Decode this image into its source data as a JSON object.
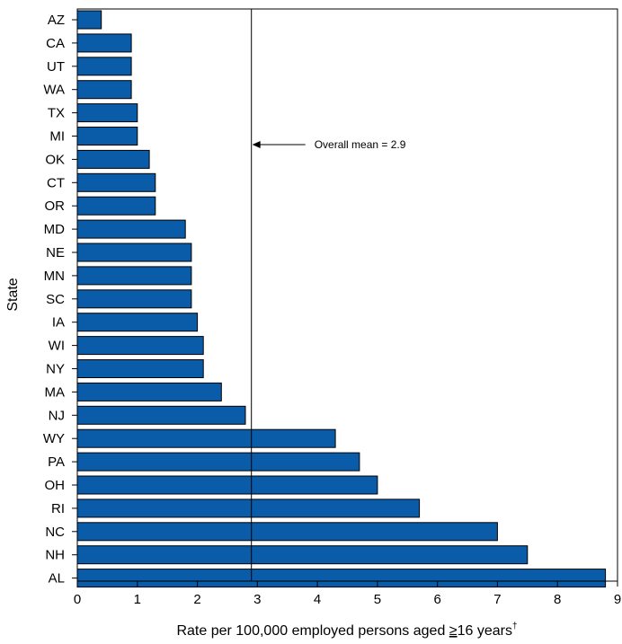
{
  "chart_data": {
    "type": "bar",
    "orientation": "horizontal",
    "categories": [
      "AZ",
      "CA",
      "UT",
      "WA",
      "TX",
      "MI",
      "OK",
      "CT",
      "OR",
      "MD",
      "NE",
      "MN",
      "SC",
      "IA",
      "WI",
      "NY",
      "MA",
      "NJ",
      "WY",
      "PA",
      "OH",
      "RI",
      "NC",
      "NH",
      "AL"
    ],
    "values": [
      0.4,
      0.9,
      0.9,
      0.9,
      1.0,
      1.0,
      1.2,
      1.3,
      1.3,
      1.8,
      1.9,
      1.9,
      1.9,
      2.0,
      2.1,
      2.1,
      2.4,
      2.8,
      4.3,
      4.7,
      5.0,
      5.7,
      7.0,
      7.5,
      8.8
    ],
    "xlim": [
      0,
      9
    ],
    "xticks": [
      "0",
      "1",
      "2",
      "3",
      "4",
      "5",
      "6",
      "7",
      "8",
      "9"
    ],
    "xlabel": "Rate per 100,000 employed persons aged ≥16 years†",
    "xlabel_parts": {
      "prefix": "Rate per 100,000 employed persons aged ",
      "ge": "≥",
      "num": "16 years",
      "dagger": "†"
    },
    "ylabel": "State",
    "mean_value": 2.9,
    "mean_label": "Overall mean = 2.9",
    "bar_color": "#0a5ba8",
    "bar_edge": "#000000",
    "grid": false,
    "legend": "none"
  }
}
